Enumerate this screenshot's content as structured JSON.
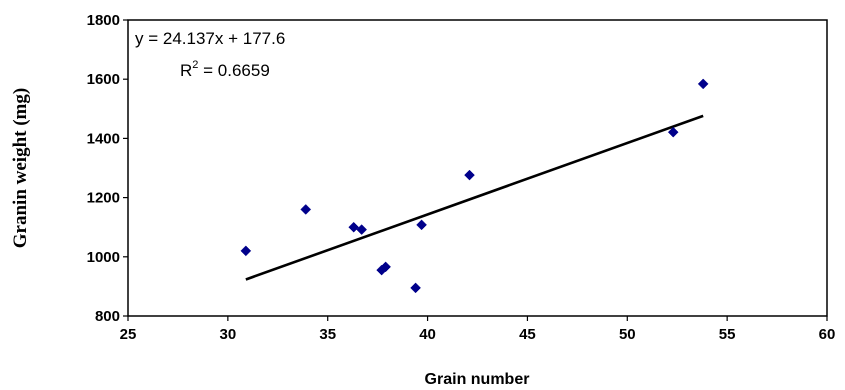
{
  "chart_data": {
    "type": "scatter",
    "title": "",
    "xlabel": "Grain number",
    "ylabel": "Granin weight (mg)",
    "xlim": [
      25,
      60
    ],
    "ylim": [
      800,
      1800
    ],
    "xticks": [
      "25",
      "30",
      "35",
      "40",
      "45",
      "50",
      "55",
      "60"
    ],
    "yticks": [
      "800",
      "1000",
      "1200",
      "1400",
      "1600",
      "1800"
    ],
    "grid": false,
    "legend": "none",
    "series": [
      {
        "marker": "diamond",
        "color": "#00008B",
        "points": [
          {
            "x": 30.9,
            "y": 1020
          },
          {
            "x": 33.9,
            "y": 1160
          },
          {
            "x": 36.3,
            "y": 1100
          },
          {
            "x": 36.7,
            "y": 1092
          },
          {
            "x": 37.7,
            "y": 955
          },
          {
            "x": 37.9,
            "y": 966
          },
          {
            "x": 39.4,
            "y": 895
          },
          {
            "x": 39.7,
            "y": 1108
          },
          {
            "x": 42.1,
            "y": 1276
          },
          {
            "x": 52.3,
            "y": 1421
          },
          {
            "x": 53.8,
            "y": 1584
          }
        ]
      }
    ],
    "trendline": {
      "slope": 24.137,
      "intercept": 177.6,
      "x_range": [
        30.9,
        53.8
      ],
      "color": "#000000"
    },
    "annotation": {
      "equation": "y = 24.137x + 177.6",
      "r2_prefix": "R",
      "r2_sup": "2",
      "r2_value": " = 0.6659"
    }
  }
}
